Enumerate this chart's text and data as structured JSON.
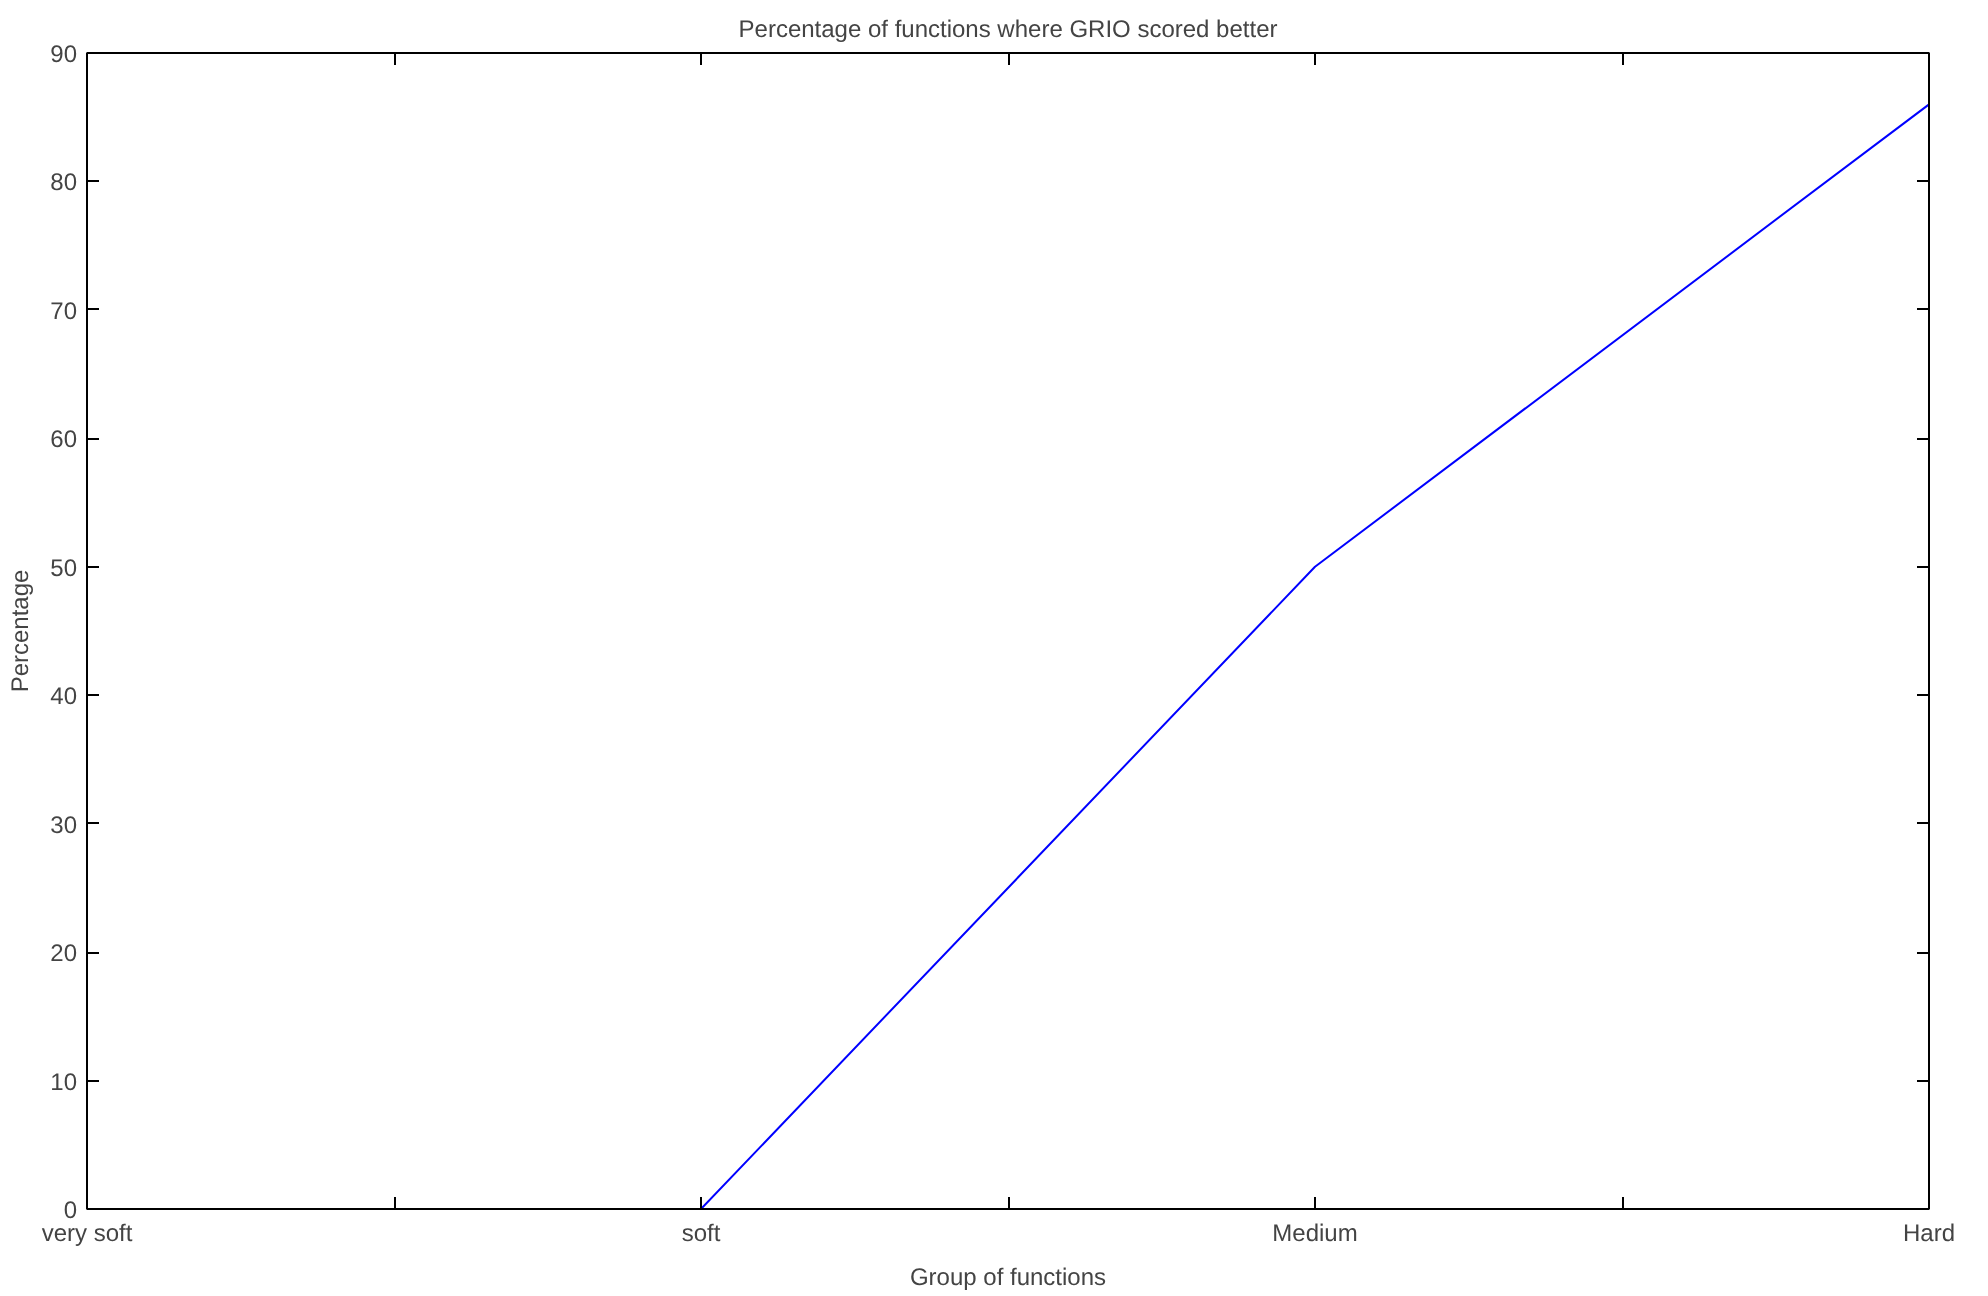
{
  "chart_data": {
    "type": "line",
    "title": "Percentage of functions where GRIO scored better",
    "xlabel": "Group of functions",
    "ylabel": "Percentage",
    "categories": [
      "very soft",
      "soft",
      "Medium",
      "Hard"
    ],
    "series": [
      {
        "color": "#0000ff",
        "values": [
          null,
          0,
          50,
          86
        ]
      }
    ],
    "ylim": [
      0,
      90
    ],
    "yticks": [
      0,
      10,
      20,
      30,
      40,
      50,
      60,
      70,
      80,
      90
    ],
    "grid": false,
    "marker": "none",
    "line_style": "solid"
  }
}
